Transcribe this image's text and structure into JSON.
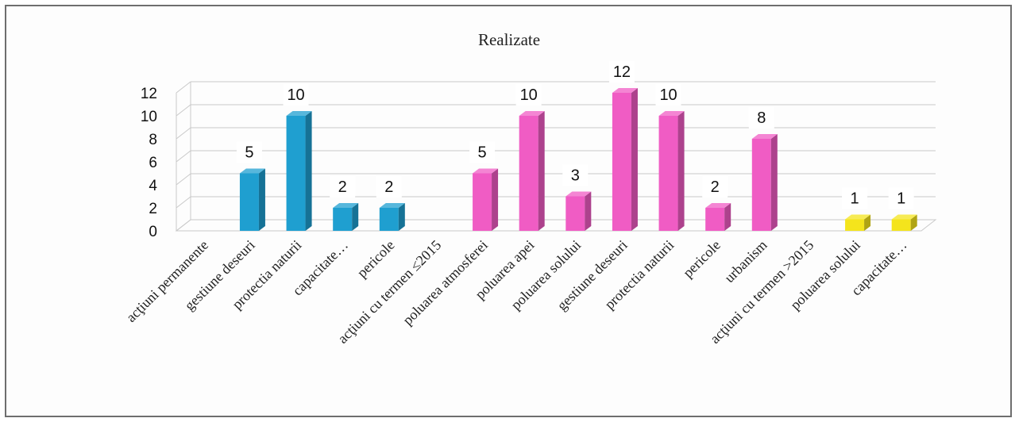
{
  "chart_data": {
    "type": "bar",
    "title": "Realizate",
    "categories": [
      "acţiuni permanente",
      "gestiune deseuri",
      "protectia naturii",
      "capacitate…",
      "pericole",
      "acţiuni cu termen ≤2015",
      "poluarea atmosferei",
      "poluarea apei",
      "poluarea solului",
      "gestiune deseuri",
      "protectia naturii",
      "pericole",
      "urbanism",
      "acţiuni cu termen >2015",
      "poluarea solului",
      "capacitate…"
    ],
    "values": [
      null,
      5,
      10,
      2,
      2,
      null,
      5,
      10,
      3,
      12,
      10,
      2,
      8,
      null,
      1,
      1
    ],
    "bar_colors": [
      "",
      "#1f9fd0",
      "#1f9fd0",
      "#1f9fd0",
      "#1f9fd0",
      "",
      "#f05cc4",
      "#f05cc4",
      "#f05cc4",
      "#f05cc4",
      "#f05cc4",
      "#f05cc4",
      "#f05cc4",
      "",
      "#f4e41c",
      "#f4e41c"
    ],
    "yticks": [
      0,
      2,
      4,
      6,
      8,
      10,
      12
    ],
    "ylim": [
      0,
      12
    ],
    "grid": true,
    "data_labels": true
  }
}
